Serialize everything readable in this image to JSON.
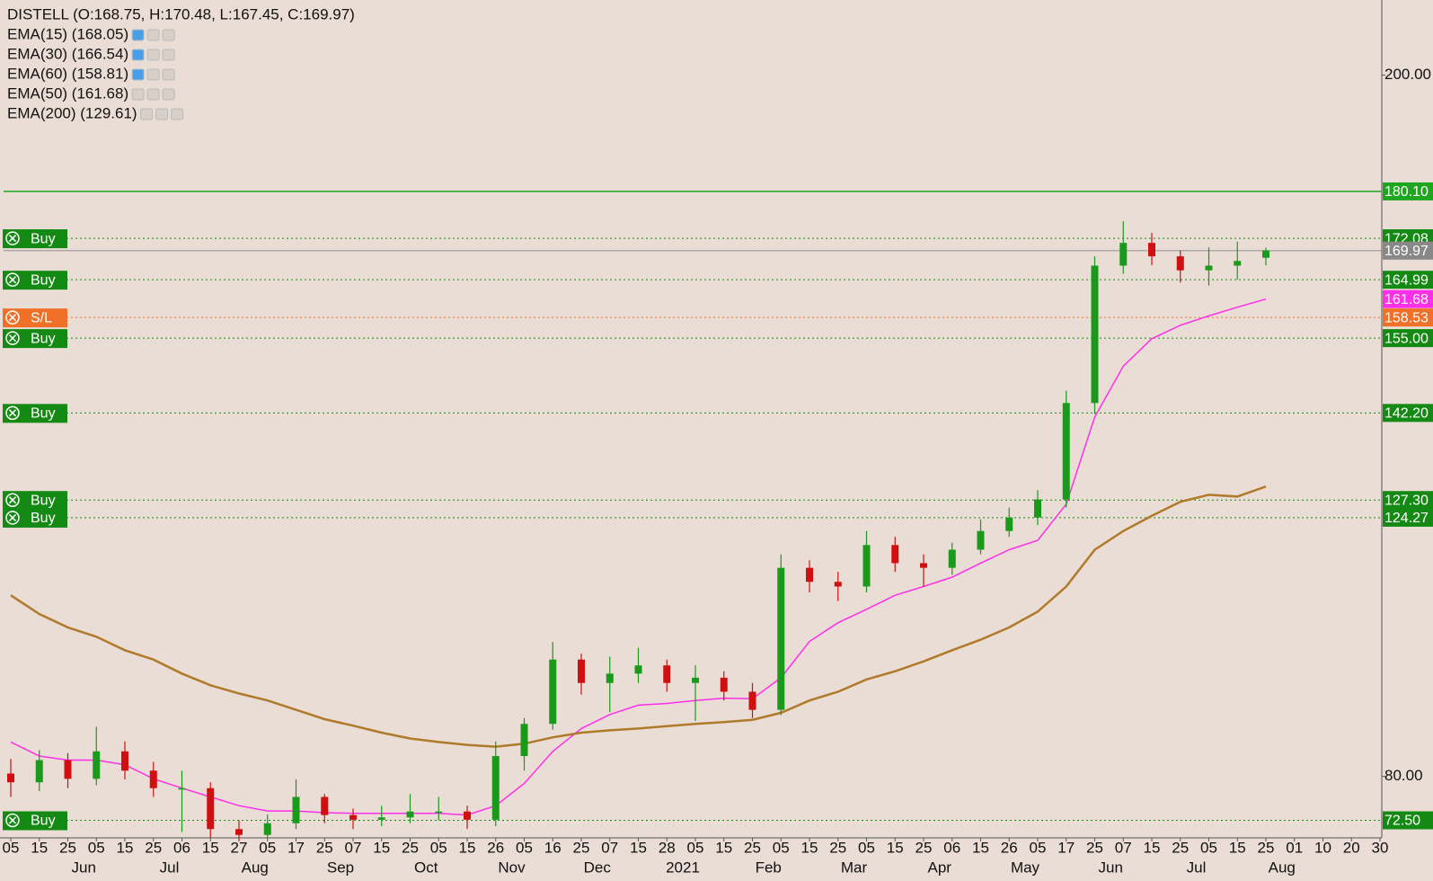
{
  "chart_data": {
    "type": "candlestick",
    "title": "DISTELL (O:168.75, H:170.48, L:167.45, C:169.97)",
    "indicators": [
      "EMA(15) (168.05)",
      "EMA(30) (166.54)",
      "EMA(60) (158.81)",
      "EMA(50) (161.68)",
      "EMA(200) (129.61)"
    ],
    "categories": [
      "05",
      "15",
      "25",
      "05",
      "15",
      "25",
      "06",
      "15",
      "27",
      "05",
      "17",
      "25",
      "07",
      "15",
      "25",
      "05",
      "15",
      "26",
      "05",
      "16",
      "25",
      "07",
      "15",
      "28",
      "05",
      "15",
      "25",
      "05",
      "15",
      "25",
      "05",
      "15",
      "25",
      "06",
      "15",
      "26",
      "05",
      "17",
      "25",
      "07",
      "15",
      "25",
      "05",
      "15",
      "25",
      "01",
      "10",
      "20",
      "30"
    ],
    "month_categories": [
      null,
      null,
      null,
      "Jun",
      null,
      null,
      "Jul",
      null,
      null,
      "Aug",
      null,
      null,
      "Sep",
      null,
      null,
      "Oct",
      null,
      null,
      "Nov",
      null,
      null,
      "Dec",
      null,
      null,
      "2021",
      null,
      null,
      "Feb",
      null,
      null,
      "Mar",
      null,
      null,
      "Apr",
      null,
      null,
      "May",
      null,
      null,
      "Jun",
      null,
      null,
      "Jul",
      null,
      null,
      "Aug",
      null,
      null,
      null
    ],
    "open": [
      80.5,
      79,
      82.8,
      79.6,
      84.3,
      81,
      78,
      78,
      71,
      70,
      72,
      76.5,
      73.4,
      72.6,
      73,
      74,
      74,
      72.6,
      83.5,
      89,
      100,
      96,
      97.6,
      99,
      96,
      96.9,
      94.5,
      91.4,
      115.7,
      113.3,
      112.5,
      119.6,
      116.5,
      115.7,
      118.8,
      122,
      124.3,
      127.4,
      143.9,
      167.4,
      171.3,
      169,
      166.6,
      167.4,
      168.75,
      null,
      null,
      null,
      null
    ],
    "high": [
      83,
      84.5,
      84,
      88.5,
      86,
      82.5,
      81,
      79,
      72.5,
      73.5,
      79.5,
      77,
      74.5,
      75,
      77,
      76.5,
      75,
      86,
      90,
      103,
      101,
      100.5,
      102,
      100,
      99,
      98,
      96,
      118,
      117,
      115,
      122,
      121,
      118,
      120,
      124,
      126,
      129,
      146,
      169,
      175,
      173,
      170,
      170.5,
      171.5,
      170.48,
      null,
      null,
      null,
      null
    ],
    "low": [
      76.5,
      77.5,
      78,
      78.5,
      79.5,
      76.5,
      70.5,
      69.5,
      69,
      69.5,
      71,
      72,
      71,
      71.5,
      72,
      72.5,
      71,
      71.5,
      81,
      88,
      94,
      91,
      96,
      94.5,
      89.5,
      93,
      90,
      90.5,
      111.5,
      110,
      111.5,
      115,
      112.5,
      114.5,
      118,
      121,
      123,
      126,
      142,
      166,
      167.5,
      164.5,
      164,
      165,
      167.45,
      null,
      null,
      null,
      null
    ],
    "close": [
      79,
      82.8,
      79.6,
      84.3,
      81,
      78,
      78,
      71,
      70,
      72,
      76.5,
      73.4,
      72.6,
      73,
      74,
      74,
      72.6,
      83.5,
      89,
      100,
      96,
      97.6,
      99,
      96,
      96.9,
      94.5,
      91.4,
      115.7,
      113.3,
      112.5,
      119.6,
      116.5,
      115.7,
      118.8,
      122,
      124.3,
      127.4,
      143.9,
      167.4,
      171.3,
      169,
      166.6,
      167.4,
      168.2,
      169.97,
      null,
      null,
      null,
      null
    ],
    "up_color": "#1a9a1a",
    "down_color": "#d01010",
    "series": [
      {
        "name": "EMA(50)",
        "color": "#ff2fe8",
        "values": [
          85.9,
          83.5,
          82.8,
          82.8,
          82,
          79.6,
          78,
          76.5,
          75,
          74.1,
          74.1,
          73.8,
          73.7,
          73.7,
          73.7,
          73.7,
          73.4,
          75,
          78.8,
          84.3,
          88.2,
          90.6,
          92.2,
          92.5,
          93,
          93.4,
          93.3,
          96.9,
          103.1,
          106.3,
          108.6,
          111,
          112.5,
          114.1,
          116.5,
          118.8,
          120.4,
          126.6,
          141.5,
          150.2,
          154.9,
          157.2,
          158.8,
          160.3,
          161.68,
          null,
          null,
          null,
          null
        ]
      },
      {
        "name": "EMA(200)",
        "color": "#b07a2a",
        "values": [
          111,
          107.8,
          105.5,
          103.9,
          101.6,
          100,
          97.6,
          95.6,
          94.2,
          93,
          91.4,
          89.8,
          88.7,
          87.5,
          86.5,
          85.9,
          85.4,
          85.1,
          85.6,
          86.7,
          87.5,
          87.9,
          88.2,
          88.6,
          89,
          89.3,
          89.7,
          90.9,
          93,
          94.5,
          96.6,
          98,
          99.7,
          101.6,
          103.4,
          105.5,
          108.2,
          112.5,
          118.8,
          122,
          124.6,
          127,
          128.2,
          127.9,
          129.61,
          null,
          null,
          null,
          null
        ]
      }
    ],
    "levels": [
      {
        "value": 180.1,
        "label": "180.10",
        "color": "#1fa61f",
        "style": "solid"
      },
      {
        "value": 172.08,
        "label": "172.08",
        "color": "#148a14",
        "style": "dotted",
        "order": "Buy"
      },
      {
        "value": 169.97,
        "label": "169.97",
        "color": "#888888",
        "style": "solid"
      },
      {
        "value": 164.99,
        "label": "164.99",
        "color": "#148a14",
        "style": "dotted",
        "order": "Buy"
      },
      {
        "value": 161.68,
        "label": "161.68",
        "color": "#ff2fe8",
        "style": "none"
      },
      {
        "value": 158.53,
        "label": "158.53",
        "color": "#f07028",
        "style": "dotted",
        "order": "S/L"
      },
      {
        "value": 155,
        "label": "155.00",
        "color": "#148a14",
        "style": "dotted",
        "order": "Buy"
      },
      {
        "value": 142.2,
        "label": "142.20",
        "color": "#148a14",
        "style": "dotted",
        "order": "Buy"
      },
      {
        "value": 127.3,
        "label": "127.30",
        "color": "#148a14",
        "style": "dotted",
        "order": "Buy"
      },
      {
        "value": 124.27,
        "label": "124.27",
        "color": "#148a14",
        "style": "dotted",
        "order": "Buy"
      },
      {
        "value": 72.5,
        "label": "72.50",
        "color": "#148a14",
        "style": "dotted",
        "order": "Buy"
      }
    ],
    "ylim": [
      69.5,
      212.85
    ],
    "yticks": [
      {
        "value": 200,
        "label": "200.00"
      },
      {
        "value": 80,
        "label": "80.00"
      }
    ]
  }
}
